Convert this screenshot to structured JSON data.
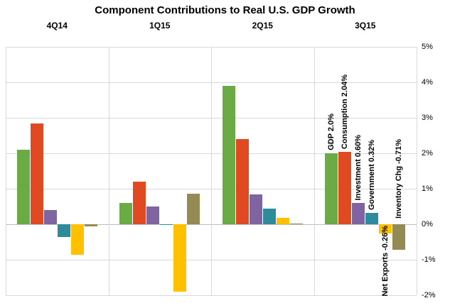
{
  "colors": {
    "grid": "#D9D9D9",
    "zero_line": "#BFBFBF",
    "text": "#000000",
    "background": "#FFFFFF"
  },
  "chart_data": {
    "type": "bar",
    "title": "Component Contributions to Real U.S. GDP Growth",
    "categories": [
      "4Q14",
      "1Q15",
      "2Q15",
      "3Q15"
    ],
    "series": [
      {
        "name": "GDP",
        "color": "#6BAB45",
        "values": [
          2.1,
          0.6,
          3.9,
          2.0
        ]
      },
      {
        "name": "Consumption",
        "color": "#E04A22",
        "values": [
          2.85,
          1.2,
          2.4,
          2.04
        ]
      },
      {
        "name": "Investment",
        "color": "#8064A2",
        "values": [
          0.4,
          0.5,
          0.85,
          0.6
        ]
      },
      {
        "name": "Government",
        "color": "#2E8B9C",
        "values": [
          -0.35,
          -0.01,
          0.45,
          0.32
        ]
      },
      {
        "name": "Net Exports",
        "color": "#FFC000",
        "values": [
          -0.85,
          -1.9,
          0.18,
          -0.26
        ]
      },
      {
        "name": "Inventory Chg",
        "color": "#948A54",
        "values": [
          -0.05,
          0.87,
          0.03,
          -0.71
        ]
      }
    ],
    "ylim": [
      -2,
      5
    ],
    "ytick_step": 1,
    "yticks_labels": [
      "5%",
      "4%",
      "3%",
      "2%",
      "1%",
      "0%",
      "-1%",
      "-2%"
    ],
    "y_axis_side": "right",
    "grid": true,
    "legend": "none",
    "annotations": [
      {
        "quarter": 3,
        "series": 0,
        "text": "GDP 2.0%",
        "placement": "above-bar"
      },
      {
        "quarter": 3,
        "series": 1,
        "text": "Consumption 2.04%",
        "placement": "above-bar"
      },
      {
        "quarter": 3,
        "series": 2,
        "text": "Investment 0.60%",
        "placement": "above-bar"
      },
      {
        "quarter": 3,
        "series": 3,
        "text": "Government 0.32%",
        "placement": "above-bar"
      },
      {
        "quarter": 3,
        "series": 4,
        "text": "Net Exports -0.26%",
        "placement": "below-bar"
      },
      {
        "quarter": 3,
        "series": 5,
        "text": "Inventory Chg -0.71%",
        "placement": "above-zero"
      }
    ]
  }
}
